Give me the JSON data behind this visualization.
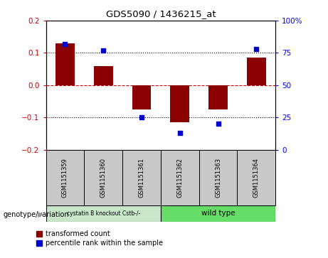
{
  "title": "GDS5090 / 1436215_at",
  "samples": [
    "GSM1151359",
    "GSM1151360",
    "GSM1151361",
    "GSM1151362",
    "GSM1151363",
    "GSM1151364"
  ],
  "bar_values": [
    0.13,
    0.06,
    -0.075,
    -0.115,
    -0.075,
    0.085
  ],
  "dot_values": [
    82,
    77,
    25,
    13,
    20,
    78
  ],
  "bar_color": "#8B0000",
  "dot_color": "#0000CC",
  "ylim_left": [
    -0.2,
    0.2
  ],
  "ylim_right": [
    0,
    100
  ],
  "yticks_left": [
    -0.2,
    -0.1,
    0,
    0.1,
    0.2
  ],
  "yticks_right": [
    0,
    25,
    50,
    75,
    100
  ],
  "group1_label": "cystatin B knockout Cstb-/-",
  "group2_label": "wild type",
  "group1_color": "#c8e6c8",
  "group2_color": "#66dd66",
  "sample_box_color": "#c8c8c8",
  "xlabel_left": "genotype/variation",
  "legend1": "transformed count",
  "legend2": "percentile rank within the sample",
  "background_color": "#ffffff",
  "plot_bg_color": "#ffffff",
  "zero_line_color": "#cc0000",
  "bar_width": 0.5
}
